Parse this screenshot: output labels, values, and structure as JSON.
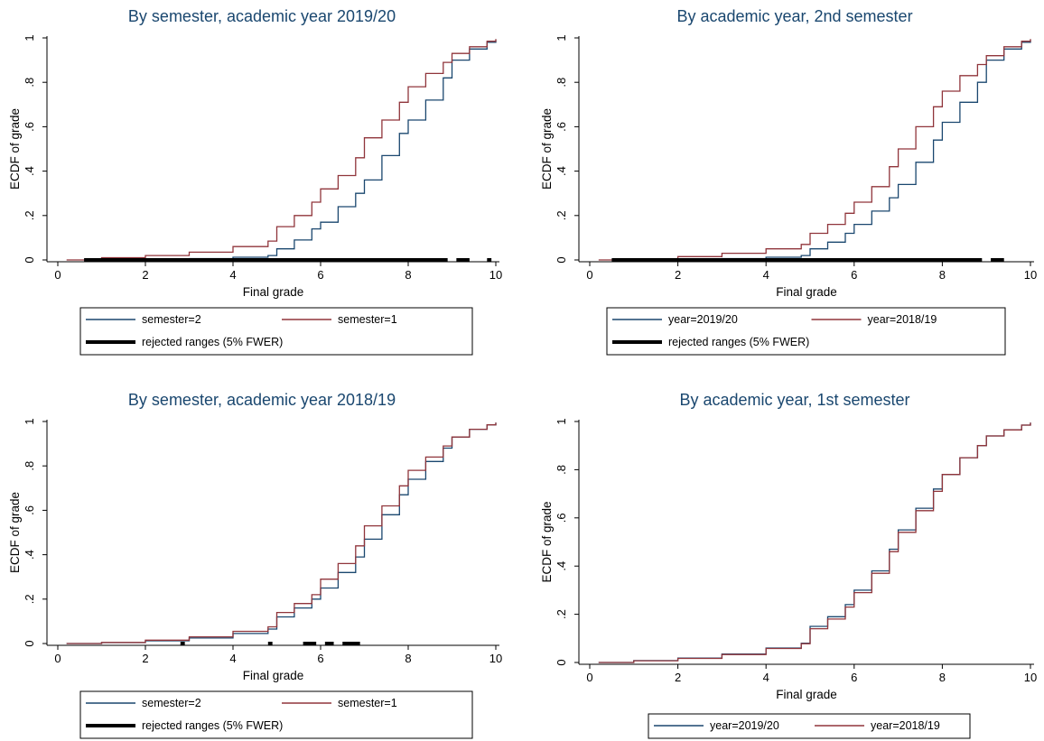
{
  "colors": {
    "title": "#1a476f",
    "series_blue": "#1a476f",
    "series_red": "#90353b",
    "rejected": "#000000"
  },
  "chart_data": [
    {
      "type": "line",
      "title": "By semester, academic year 2019/20",
      "xlabel": "Final grade",
      "ylabel": "ECDF of grade",
      "xlim": [
        0,
        10
      ],
      "ylim": [
        0,
        1
      ],
      "x_ticks": [
        0,
        2,
        4,
        6,
        8,
        10
      ],
      "x_tick_labels": [
        "0",
        "2",
        "4",
        "6",
        "8",
        "10"
      ],
      "y_ticks": [
        0,
        0.2,
        0.4,
        0.6,
        0.8,
        1
      ],
      "y_tick_labels": [
        "0",
        ".2",
        ".4",
        ".6",
        ".8",
        "1"
      ],
      "grid": false,
      "legend_position": "bottom",
      "legend_rows": [
        [
          "semester=2",
          "semester=1"
        ],
        [
          "rejected ranges (5% FWER)"
        ]
      ],
      "series": [
        {
          "name": "semester=2",
          "color": "#1a476f",
          "x": [
            0.6,
            1,
            2,
            3,
            4,
            4.8,
            5,
            5.4,
            5.8,
            6,
            6.4,
            6.8,
            7,
            7.4,
            7.8,
            8,
            8.4,
            8.8,
            9,
            9.4,
            9.8,
            10
          ],
          "y": [
            0.0,
            0.001,
            0.003,
            0.006,
            0.012,
            0.02,
            0.05,
            0.09,
            0.14,
            0.17,
            0.24,
            0.3,
            0.36,
            0.47,
            0.57,
            0.63,
            0.72,
            0.82,
            0.9,
            0.95,
            0.98,
            0.99
          ]
        },
        {
          "name": "semester=1",
          "color": "#90353b",
          "x": [
            0.2,
            1,
            2,
            3,
            4,
            4.8,
            5,
            5.4,
            5.8,
            6,
            6.4,
            6.8,
            7,
            7.4,
            7.8,
            8,
            8.4,
            8.8,
            9,
            9.4,
            9.8,
            10
          ],
          "y": [
            0.0,
            0.01,
            0.02,
            0.035,
            0.06,
            0.085,
            0.15,
            0.2,
            0.26,
            0.32,
            0.38,
            0.46,
            0.55,
            0.63,
            0.71,
            0.78,
            0.84,
            0.89,
            0.93,
            0.96,
            0.985,
            0.995
          ]
        }
      ],
      "rejected_ranges": [
        [
          0.6,
          8.9
        ],
        [
          9.1,
          9.4
        ],
        [
          9.8,
          9.9
        ]
      ]
    },
    {
      "type": "line",
      "title": "By academic year, 2nd semester",
      "xlabel": "Final grade",
      "ylabel": "ECDF of grade",
      "xlim": [
        0,
        10
      ],
      "ylim": [
        0,
        1
      ],
      "x_ticks": [
        0,
        2,
        4,
        6,
        8,
        10
      ],
      "x_tick_labels": [
        "0",
        "2",
        "4",
        "6",
        "8",
        "10"
      ],
      "y_ticks": [
        0,
        0.2,
        0.4,
        0.6,
        0.8,
        1
      ],
      "y_tick_labels": [
        "0",
        ".2",
        ".4",
        ".6",
        ".8",
        "1"
      ],
      "grid": false,
      "legend_position": "bottom",
      "legend_rows": [
        [
          "year=2019/20",
          "year=2018/19"
        ],
        [
          "rejected ranges (5% FWER)"
        ]
      ],
      "series": [
        {
          "name": "year=2019/20",
          "color": "#1a476f",
          "x": [
            0.5,
            1,
            2,
            3,
            4,
            4.8,
            5,
            5.4,
            5.8,
            6,
            6.4,
            6.8,
            7,
            7.4,
            7.8,
            8,
            8.4,
            8.8,
            9,
            9.4,
            9.8,
            10
          ],
          "y": [
            0.0,
            0.001,
            0.003,
            0.006,
            0.012,
            0.02,
            0.05,
            0.08,
            0.12,
            0.16,
            0.22,
            0.28,
            0.34,
            0.44,
            0.54,
            0.62,
            0.71,
            0.8,
            0.9,
            0.95,
            0.98,
            0.99
          ]
        },
        {
          "name": "year=2018/19",
          "color": "#90353b",
          "x": [
            0.2,
            1,
            2,
            3,
            4,
            4.8,
            5,
            5.4,
            5.8,
            6,
            6.4,
            6.8,
            7,
            7.4,
            7.8,
            8,
            8.4,
            8.8,
            9,
            9.4,
            9.8,
            10
          ],
          "y": [
            0.0,
            0.005,
            0.015,
            0.03,
            0.05,
            0.07,
            0.12,
            0.16,
            0.21,
            0.26,
            0.33,
            0.42,
            0.5,
            0.6,
            0.69,
            0.76,
            0.83,
            0.88,
            0.92,
            0.96,
            0.985,
            0.995
          ]
        }
      ],
      "rejected_ranges": [
        [
          0.5,
          8.9
        ],
        [
          9.1,
          9.4
        ]
      ]
    },
    {
      "type": "line",
      "title": "By semester, academic year 2018/19",
      "xlabel": "Final grade",
      "ylabel": "ECDF of grade",
      "xlim": [
        0,
        10
      ],
      "ylim": [
        0,
        1
      ],
      "x_ticks": [
        0,
        2,
        4,
        6,
        8,
        10
      ],
      "x_tick_labels": [
        "0",
        "2",
        "4",
        "6",
        "8",
        "10"
      ],
      "y_ticks": [
        0,
        0.2,
        0.4,
        0.6,
        0.8,
        1
      ],
      "y_tick_labels": [
        "0",
        ".2",
        ".4",
        ".6",
        ".8",
        "1"
      ],
      "grid": false,
      "legend_position": "bottom",
      "legend_rows": [
        [
          "semester=2",
          "semester=1"
        ],
        [
          "rejected ranges (5% FWER)"
        ]
      ],
      "series": [
        {
          "name": "semester=2",
          "color": "#1a476f",
          "x": [
            0.2,
            1,
            2,
            3,
            4,
            4.8,
            5,
            5.4,
            5.8,
            6,
            6.4,
            6.8,
            7,
            7.4,
            7.8,
            8,
            8.4,
            8.8,
            9,
            9.4,
            9.8,
            10
          ],
          "y": [
            0.0,
            0.004,
            0.012,
            0.025,
            0.045,
            0.065,
            0.12,
            0.16,
            0.2,
            0.25,
            0.32,
            0.39,
            0.47,
            0.58,
            0.67,
            0.74,
            0.82,
            0.88,
            0.93,
            0.965,
            0.985,
            0.995
          ]
        },
        {
          "name": "semester=1",
          "color": "#90353b",
          "x": [
            0.2,
            1,
            2,
            3,
            4,
            4.8,
            5,
            5.4,
            5.8,
            6,
            6.4,
            6.8,
            7,
            7.4,
            7.8,
            8,
            8.4,
            8.8,
            9,
            9.4,
            9.8,
            10
          ],
          "y": [
            0.0,
            0.005,
            0.015,
            0.03,
            0.055,
            0.075,
            0.14,
            0.18,
            0.22,
            0.29,
            0.36,
            0.44,
            0.53,
            0.62,
            0.71,
            0.78,
            0.84,
            0.89,
            0.93,
            0.965,
            0.985,
            0.995
          ]
        }
      ],
      "rejected_ranges": [
        [
          2.8,
          2.9
        ],
        [
          4.8,
          4.9
        ],
        [
          5.6,
          5.9
        ],
        [
          6.1,
          6.3
        ],
        [
          6.5,
          6.9
        ]
      ]
    },
    {
      "type": "line",
      "title": "By academic year, 1st semester",
      "xlabel": "Final grade",
      "ylabel": "ECDF of grade",
      "xlim": [
        0,
        10
      ],
      "ylim": [
        0,
        1
      ],
      "x_ticks": [
        0,
        2,
        4,
        6,
        8,
        10
      ],
      "x_tick_labels": [
        "0",
        "2",
        "4",
        "6",
        "8",
        "10"
      ],
      "y_ticks": [
        0,
        0.2,
        0.4,
        0.6,
        0.8,
        1
      ],
      "y_tick_labels": [
        "0",
        ".2",
        ".4",
        ".6",
        ".8",
        "1"
      ],
      "grid": false,
      "legend_position": "bottom",
      "legend_rows": [
        [
          "year=2019/20",
          "year=2018/19"
        ]
      ],
      "series": [
        {
          "name": "year=2019/20",
          "color": "#1a476f",
          "x": [
            0.2,
            1,
            2,
            3,
            4,
            4.8,
            5,
            5.4,
            5.8,
            6,
            6.4,
            6.8,
            7,
            7.4,
            7.8,
            8,
            8.4,
            8.8,
            9,
            9.4,
            9.8,
            10
          ],
          "y": [
            0.0,
            0.008,
            0.018,
            0.035,
            0.06,
            0.08,
            0.15,
            0.19,
            0.24,
            0.3,
            0.38,
            0.47,
            0.55,
            0.64,
            0.72,
            0.78,
            0.85,
            0.9,
            0.94,
            0.965,
            0.985,
            0.995
          ]
        },
        {
          "name": "year=2018/19",
          "color": "#90353b",
          "x": [
            0.2,
            1,
            2,
            3,
            4,
            4.8,
            5,
            5.4,
            5.8,
            6,
            6.4,
            6.8,
            7,
            7.4,
            7.8,
            8,
            8.4,
            8.8,
            9,
            9.4,
            9.8,
            10
          ],
          "y": [
            0.0,
            0.007,
            0.017,
            0.033,
            0.058,
            0.078,
            0.14,
            0.18,
            0.23,
            0.29,
            0.37,
            0.46,
            0.54,
            0.63,
            0.71,
            0.78,
            0.85,
            0.9,
            0.94,
            0.965,
            0.985,
            0.995
          ]
        }
      ],
      "rejected_ranges": []
    }
  ]
}
